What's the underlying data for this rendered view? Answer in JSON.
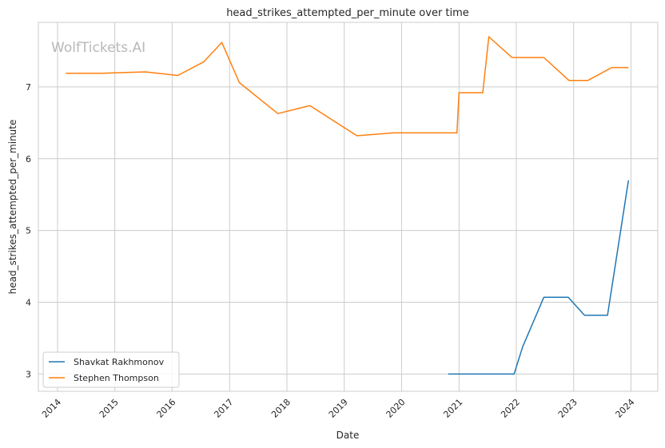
{
  "chart_data": {
    "type": "line",
    "title": "head_strikes_attempted_per_minute over time",
    "xlabel": "Date",
    "ylabel": "head_strikes_attempted_per_minute",
    "watermark": "WolfTickets.AI",
    "xlim": [
      "2013-09-01",
      "2024-06-20"
    ],
    "ylim": [
      2.76,
      7.9
    ],
    "x_ticks": [
      "2014",
      "2015",
      "2016",
      "2017",
      "2018",
      "2019",
      "2020",
      "2021",
      "2022",
      "2023",
      "2024"
    ],
    "y_ticks": [
      3,
      4,
      5,
      6,
      7
    ],
    "grid": true,
    "legend_position": "lower-left",
    "series": [
      {
        "name": "Shavkat Rakhmonov",
        "color": "#1f77b4",
        "points": [
          [
            "2020-10-24",
            3.0
          ],
          [
            "2021-12-18",
            3.0
          ],
          [
            "2022-02-10",
            3.38
          ],
          [
            "2022-06-25",
            4.07
          ],
          [
            "2022-11-28",
            4.07
          ],
          [
            "2023-03-11",
            3.82
          ],
          [
            "2023-08-05",
            3.82
          ],
          [
            "2023-12-16",
            5.7
          ]
        ]
      },
      {
        "name": "Stephen Thompson",
        "color": "#ff7f0e",
        "points": [
          [
            "2014-02-22",
            7.19
          ],
          [
            "2014-10-04",
            7.19
          ],
          [
            "2015-07-15",
            7.21
          ],
          [
            "2016-02-06",
            7.16
          ],
          [
            "2016-07-20",
            7.35
          ],
          [
            "2016-11-12",
            7.62
          ],
          [
            "2017-03-04",
            7.06
          ],
          [
            "2017-11-04",
            6.63
          ],
          [
            "2018-05-27",
            6.74
          ],
          [
            "2019-03-23",
            6.32
          ],
          [
            "2019-11-09",
            6.36
          ],
          [
            "2020-12-19",
            6.36
          ],
          [
            "2021-01-01",
            6.92
          ],
          [
            "2021-06-01",
            6.92
          ],
          [
            "2021-07-10",
            7.7
          ],
          [
            "2021-12-04",
            7.41
          ],
          [
            "2022-06-25",
            7.41
          ],
          [
            "2022-12-03",
            7.09
          ],
          [
            "2023-04-01",
            7.09
          ],
          [
            "2023-09-01",
            7.27
          ],
          [
            "2023-12-16",
            7.27
          ]
        ]
      }
    ]
  }
}
